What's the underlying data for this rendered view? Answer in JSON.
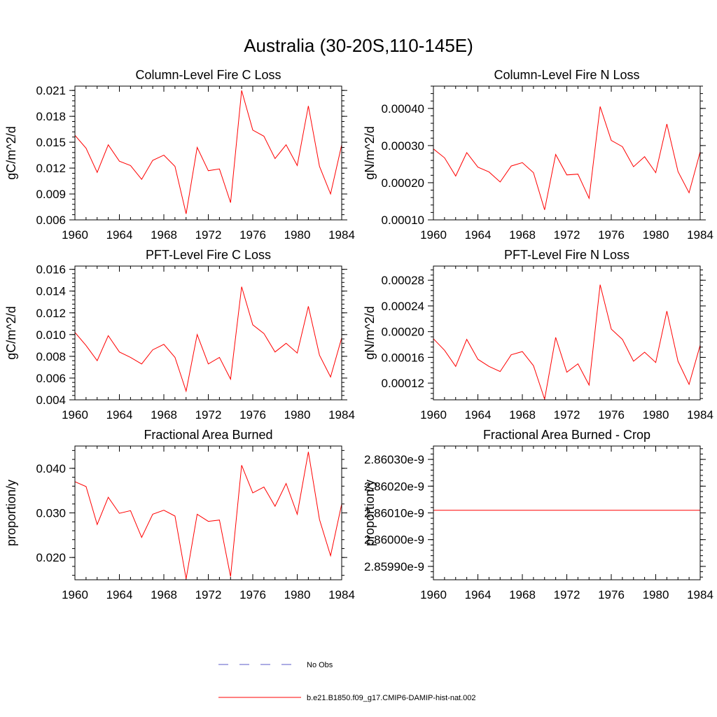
{
  "figure": {
    "title": "Australia (30-20S,110-145E)"
  },
  "colors": {
    "model_line": "#ff0000",
    "obs_line": "#5a5ac8",
    "axis": "#000000"
  },
  "legend": {
    "placement": "bottom-center",
    "entries": [
      {
        "label": "No Obs",
        "style": "dashed",
        "color": "#5a5ac8"
      },
      {
        "label": "b.e21.B1850.f09_g17.CMIP6-DAMIP-hist-nat.002",
        "style": "solid",
        "color": "#ff0000"
      }
    ]
  },
  "chart_data": [
    {
      "type": "line",
      "title": "Column-Level Fire C Loss",
      "xlabel": "",
      "ylabel": "gC/m^2/d",
      "xlim": [
        1960,
        1984
      ],
      "ylim": [
        0.006,
        0.0215
      ],
      "xticks": [
        1960,
        1964,
        1968,
        1972,
        1976,
        1980,
        1984
      ],
      "xtick_labels": [
        "1960",
        "1964",
        "1968",
        "1972",
        "1976",
        "1980",
        "1984"
      ],
      "yticks": [
        0.006,
        0.009,
        0.012,
        0.015,
        0.018,
        0.021
      ],
      "ytick_labels": [
        "0.006",
        "0.009",
        "0.012",
        "0.015",
        "0.018",
        "0.021"
      ],
      "grid": false,
      "x": [
        1960,
        1961,
        1962,
        1963,
        1964,
        1965,
        1966,
        1967,
        1968,
        1969,
        1970,
        1971,
        1972,
        1973,
        1974,
        1975,
        1976,
        1977,
        1978,
        1979,
        1980,
        1981,
        1982,
        1983,
        1984
      ],
      "series": [
        {
          "name": "b.e21.B1850.f09_g17.CMIP6-DAMIP-hist-nat.002",
          "values": [
            0.0158,
            0.0143,
            0.0115,
            0.0147,
            0.0128,
            0.0123,
            0.0107,
            0.0129,
            0.0135,
            0.0122,
            0.0067,
            0.0144,
            0.0117,
            0.0119,
            0.008,
            0.021,
            0.0164,
            0.0157,
            0.0131,
            0.0147,
            0.0123,
            0.0192,
            0.0122,
            0.009,
            0.0147
          ]
        }
      ]
    },
    {
      "type": "line",
      "title": "Column-Level Fire N Loss",
      "xlabel": "",
      "ylabel": "gN/m^2/d",
      "xlim": [
        1960,
        1984
      ],
      "ylim": [
        0.0001,
        0.00046
      ],
      "xticks": [
        1960,
        1964,
        1968,
        1972,
        1976,
        1980,
        1984
      ],
      "xtick_labels": [
        "1960",
        "1964",
        "1968",
        "1972",
        "1976",
        "1980",
        "1984"
      ],
      "yticks": [
        0.0001,
        0.0002,
        0.0003,
        0.0004
      ],
      "ytick_labels": [
        "0.00010",
        "0.00020",
        "0.00030",
        "0.00040"
      ],
      "grid": false,
      "x": [
        1960,
        1961,
        1962,
        1963,
        1964,
        1965,
        1966,
        1967,
        1968,
        1969,
        1970,
        1971,
        1972,
        1973,
        1974,
        1975,
        1976,
        1977,
        1978,
        1979,
        1980,
        1981,
        1982,
        1983,
        1984
      ],
      "series": [
        {
          "name": "b.e21.B1850.f09_g17.CMIP6-DAMIP-hist-nat.002",
          "values": [
            0.000291,
            0.000267,
            0.000218,
            0.000281,
            0.000242,
            0.000229,
            0.000202,
            0.000245,
            0.000254,
            0.000227,
            0.000127,
            0.000276,
            0.000221,
            0.000223,
            0.000158,
            0.000405,
            0.000314,
            0.000297,
            0.000243,
            0.00027,
            0.000227,
            0.000358,
            0.00023,
            0.000173,
            0.000283
          ]
        }
      ]
    },
    {
      "type": "line",
      "title": "PFT-Level Fire C Loss",
      "xlabel": "",
      "ylabel": "gC/m^2/d",
      "xlim": [
        1960,
        1984
      ],
      "ylim": [
        0.004,
        0.0163
      ],
      "xticks": [
        1960,
        1964,
        1968,
        1972,
        1976,
        1980,
        1984
      ],
      "xtick_labels": [
        "1960",
        "1964",
        "1968",
        "1972",
        "1976",
        "1980",
        "1984"
      ],
      "yticks": [
        0.004,
        0.006,
        0.008,
        0.01,
        0.012,
        0.014,
        0.016
      ],
      "ytick_labels": [
        "0.004",
        "0.006",
        "0.008",
        "0.010",
        "0.012",
        "0.014",
        "0.016"
      ],
      "grid": false,
      "x": [
        1960,
        1961,
        1962,
        1963,
        1964,
        1965,
        1966,
        1967,
        1968,
        1969,
        1970,
        1971,
        1972,
        1973,
        1974,
        1975,
        1976,
        1977,
        1978,
        1979,
        1980,
        1981,
        1982,
        1983,
        1984
      ],
      "series": [
        {
          "name": "b.e21.B1850.f09_g17.CMIP6-DAMIP-hist-nat.002",
          "values": [
            0.0102,
            0.009,
            0.0076,
            0.0099,
            0.0084,
            0.0079,
            0.0073,
            0.0086,
            0.0091,
            0.0079,
            0.0048,
            0.01,
            0.0073,
            0.0079,
            0.0059,
            0.0144,
            0.0109,
            0.0101,
            0.0084,
            0.0092,
            0.0083,
            0.0126,
            0.0081,
            0.0061,
            0.0097
          ]
        }
      ]
    },
    {
      "type": "line",
      "title": "PFT-Level Fire N Loss",
      "xlabel": "",
      "ylabel": "gN/m^2/d",
      "xlim": [
        1960,
        1984
      ],
      "ylim": [
        9.4e-05,
        0.000302
      ],
      "xticks": [
        1960,
        1964,
        1968,
        1972,
        1976,
        1980,
        1984
      ],
      "xtick_labels": [
        "1960",
        "1964",
        "1968",
        "1972",
        "1976",
        "1980",
        "1984"
      ],
      "yticks": [
        0.00012,
        0.00016,
        0.0002,
        0.00024,
        0.00028
      ],
      "ytick_labels": [
        "0.00012",
        "0.00016",
        "0.00020",
        "0.00024",
        "0.00028"
      ],
      "grid": false,
      "x": [
        1960,
        1961,
        1962,
        1963,
        1964,
        1965,
        1966,
        1967,
        1968,
        1969,
        1970,
        1971,
        1972,
        1973,
        1974,
        1975,
        1976,
        1977,
        1978,
        1979,
        1980,
        1981,
        1982,
        1983,
        1984
      ],
      "series": [
        {
          "name": "b.e21.B1850.f09_g17.CMIP6-DAMIP-hist-nat.002",
          "values": [
            0.000189,
            0.000171,
            0.000146,
            0.000188,
            0.000157,
            0.000146,
            0.000138,
            0.000164,
            0.000169,
            0.000147,
            9.5e-05,
            0.000191,
            0.000137,
            0.00015,
            0.000117,
            0.000273,
            0.000204,
            0.000188,
            0.000154,
            0.000168,
            0.000152,
            0.000232,
            0.000154,
            0.000118,
            0.000179
          ]
        }
      ]
    },
    {
      "type": "line",
      "title": "Fractional Area Burned",
      "xlabel": "",
      "ylabel": "proportion/y",
      "xlim": [
        1960,
        1984
      ],
      "ylim": [
        0.015,
        0.045
      ],
      "xticks": [
        1960,
        1964,
        1968,
        1972,
        1976,
        1980,
        1984
      ],
      "xtick_labels": [
        "1960",
        "1964",
        "1968",
        "1972",
        "1976",
        "1980",
        "1984"
      ],
      "yticks": [
        0.02,
        0.03,
        0.04
      ],
      "ytick_labels": [
        "0.020",
        "0.030",
        "0.040"
      ],
      "grid": false,
      "x": [
        1960,
        1961,
        1962,
        1963,
        1964,
        1965,
        1966,
        1967,
        1968,
        1969,
        1970,
        1971,
        1972,
        1973,
        1974,
        1975,
        1976,
        1977,
        1978,
        1979,
        1980,
        1981,
        1982,
        1983,
        1984
      ],
      "series": [
        {
          "name": "b.e21.B1850.f09_g17.CMIP6-DAMIP-hist-nat.002",
          "values": [
            0.037,
            0.0359,
            0.0274,
            0.0335,
            0.0299,
            0.0305,
            0.0245,
            0.0297,
            0.0306,
            0.0293,
            0.0152,
            0.0297,
            0.0281,
            0.0284,
            0.0157,
            0.0407,
            0.0345,
            0.0358,
            0.0315,
            0.0366,
            0.0297,
            0.0437,
            0.0285,
            0.0204,
            0.032
          ]
        }
      ]
    },
    {
      "type": "line",
      "title": "Fractional Area Burned - Crop",
      "xlabel": "",
      "ylabel": "proportion/y",
      "xlim": [
        1960,
        1984
      ],
      "ylim": [
        2.85985e-09,
        2.86035e-09
      ],
      "xticks": [
        1960,
        1964,
        1968,
        1972,
        1976,
        1980,
        1984
      ],
      "xtick_labels": [
        "1960",
        "1964",
        "1968",
        "1972",
        "1976",
        "1980",
        "1984"
      ],
      "yticks": [
        2.8599e-09,
        2.86e-09,
        2.8601e-09,
        2.8602e-09,
        2.8603e-09
      ],
      "ytick_labels": [
        "2.85990e-9",
        "2.86000e-9",
        "2.86010e-9",
        "2.86020e-9",
        "2.86030e-9"
      ],
      "grid": false,
      "x": [
        1960,
        1961,
        1962,
        1963,
        1964,
        1965,
        1966,
        1967,
        1968,
        1969,
        1970,
        1971,
        1972,
        1973,
        1974,
        1975,
        1976,
        1977,
        1978,
        1979,
        1980,
        1981,
        1982,
        1983,
        1984
      ],
      "series": [
        {
          "name": "b.e21.B1850.f09_g17.CMIP6-DAMIP-hist-nat.002",
          "values": [
            2.86011e-09,
            2.86011e-09,
            2.86011e-09,
            2.86011e-09,
            2.86011e-09,
            2.86011e-09,
            2.86011e-09,
            2.86011e-09,
            2.86011e-09,
            2.86011e-09,
            2.86011e-09,
            2.86011e-09,
            2.86011e-09,
            2.86011e-09,
            2.86011e-09,
            2.86011e-09,
            2.86011e-09,
            2.86011e-09,
            2.86011e-09,
            2.86011e-09,
            2.86011e-09,
            2.86011e-09,
            2.86011e-09,
            2.86011e-09,
            2.86011e-09
          ]
        }
      ]
    }
  ]
}
